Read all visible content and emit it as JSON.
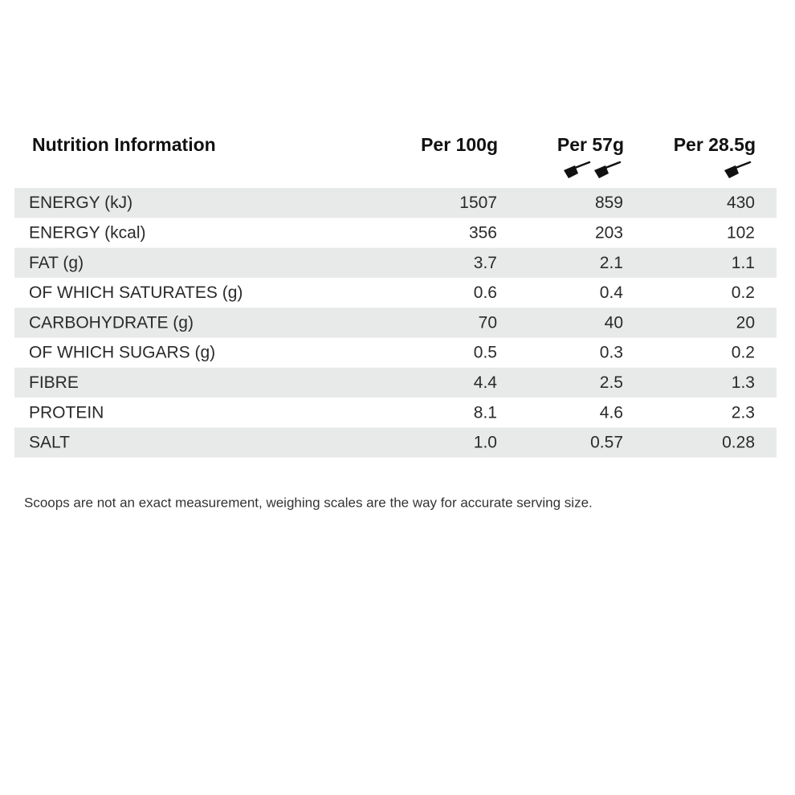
{
  "table": {
    "header": [
      "Nutrition Information",
      "Per 100g",
      "Per 57g",
      "Per 28.5g"
    ],
    "rows": [
      [
        "ENERGY (kJ)",
        "1507",
        "859",
        "430"
      ],
      [
        "ENERGY (kcal)",
        "356",
        "203",
        "102"
      ],
      [
        "FAT (g)",
        "3.7",
        "2.1",
        "1.1"
      ],
      [
        "OF WHICH SATURATES (g)",
        "0.6",
        "0.4",
        "0.2"
      ],
      [
        "CARBOHYDRATE (g)",
        "70",
        "40",
        "20"
      ],
      [
        "OF WHICH SUGARS (g)",
        "0.5",
        "0.3",
        "0.2"
      ],
      [
        "FIBRE",
        "4.4",
        "2.5",
        "1.3"
      ],
      [
        "PROTEIN",
        "8.1",
        "4.6",
        "2.3"
      ],
      [
        "SALT",
        "1.0",
        "0.57",
        "0.28"
      ]
    ]
  },
  "footnote": "Scoops are not an exact measurement, weighing scales are the way for accurate serving size."
}
